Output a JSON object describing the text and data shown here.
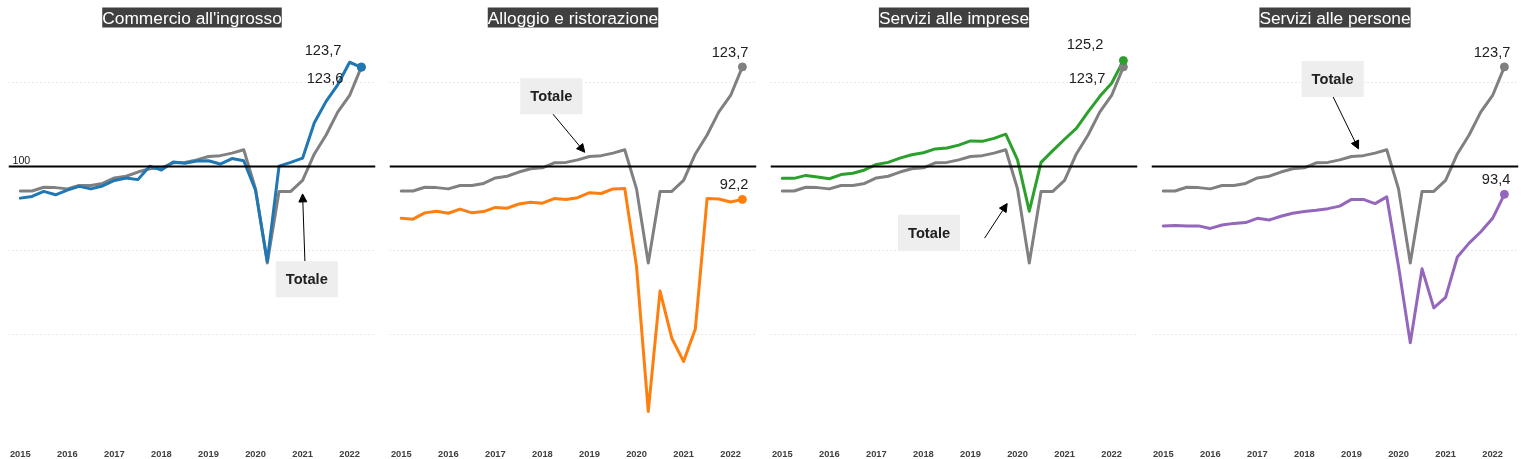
{
  "chart_data": [
    {
      "type": "line",
      "title": "Commercio all'ingrosso",
      "x": [
        2015,
        2015.25,
        2015.5,
        2015.75,
        2016,
        2016.25,
        2016.5,
        2016.75,
        2017,
        2017.25,
        2017.5,
        2017.75,
        2018,
        2018.25,
        2018.5,
        2018.75,
        2019,
        2019.25,
        2019.5,
        2019.75,
        2020,
        2020.25,
        2020.5,
        2020.75,
        2021,
        2021.25,
        2021.5,
        2021.75,
        2022,
        2022.25
      ],
      "xlim": [
        2014.75,
        2022.55
      ],
      "xticks": [
        2015,
        2016,
        2017,
        2018,
        2019,
        2020,
        2021,
        2022
      ],
      "yticks": [
        {
          "value": 60,
          "label": null
        },
        {
          "value": 80,
          "label": null
        },
        {
          "value": 100,
          "label": null
        },
        {
          "value": 120,
          "label": null
        }
      ],
      "tick_labels": "x",
      "grid": "y",
      "ref_lines": [
        {
          "axis": "y",
          "value": 100,
          "color": "#000000",
          "label": "100"
        }
      ],
      "annotations": [
        "Totale"
      ],
      "series": [
        {
          "color": "#808080",
          "values": [
            94.2,
            94.2,
            95.1,
            95.0,
            94.7,
            95.5,
            95.5,
            96.0,
            97.3,
            97.7,
            98.7,
            99.5,
            99.7,
            100.9,
            101.0,
            101.6,
            102.4,
            102.6,
            103.2,
            104.0,
            94.7,
            77.1,
            94.1,
            94.1,
            96.7,
            103.0,
            107.5,
            113.0,
            116.9,
            123.7
          ],
          "value_labels": [
            null,
            null,
            null,
            null,
            null,
            null,
            null,
            null,
            null,
            null,
            null,
            null,
            null,
            null,
            null,
            null,
            null,
            null,
            null,
            null,
            null,
            null,
            null,
            null,
            null,
            null,
            null,
            null,
            null,
            "123,7"
          ]
        },
        {
          "color": "#1f77b4",
          "values": [
            92.5,
            92.9,
            94.1,
            93.3,
            94.4,
            95.3,
            94.7,
            95.4,
            96.7,
            97.3,
            96.9,
            100.1,
            99.2,
            101.1,
            100.8,
            101.3,
            101.4,
            100.6,
            101.9,
            101.4,
            94.4,
            77.5,
            100.1,
            101.0,
            102.0,
            110.4,
            115.5,
            119.5,
            124.8,
            123.6
          ],
          "value_labels": [
            null,
            null,
            null,
            null,
            null,
            null,
            null,
            null,
            null,
            null,
            null,
            null,
            null,
            null,
            null,
            null,
            null,
            null,
            null,
            null,
            null,
            null,
            null,
            null,
            null,
            null,
            null,
            null,
            null,
            "123,6"
          ]
        }
      ]
    },
    {
      "type": "line",
      "title": "Alloggio e ristorazione",
      "x": [
        2015,
        2015.25,
        2015.5,
        2015.75,
        2016,
        2016.25,
        2016.5,
        2016.75,
        2017,
        2017.25,
        2017.5,
        2017.75,
        2018,
        2018.25,
        2018.5,
        2018.75,
        2019,
        2019.25,
        2019.5,
        2019.75,
        2020,
        2020.25,
        2020.5,
        2020.75,
        2021,
        2021.25,
        2021.5,
        2021.75,
        2022,
        2022.25
      ],
      "xlim": [
        2014.75,
        2022.55
      ],
      "xticks": [
        2015,
        2016,
        2017,
        2018,
        2019,
        2020,
        2021,
        2022
      ],
      "yticks": [
        {
          "value": 60,
          "label": null
        },
        {
          "value": 80,
          "label": null
        },
        {
          "value": 100,
          "label": null
        },
        {
          "value": 120,
          "label": null
        }
      ],
      "tick_labels": "x",
      "grid": "y",
      "ref_lines": [
        {
          "axis": "y",
          "value": 100,
          "color": "#000000"
        }
      ],
      "annotations": [
        "Totale"
      ],
      "series": [
        {
          "color": "#808080",
          "values": [
            94.2,
            94.2,
            95.1,
            95.0,
            94.7,
            95.5,
            95.5,
            96.0,
            97.3,
            97.7,
            98.7,
            99.5,
            99.7,
            100.9,
            101.0,
            101.6,
            102.4,
            102.6,
            103.2,
            104.0,
            94.7,
            77.1,
            94.1,
            94.1,
            96.7,
            103.0,
            107.5,
            113.0,
            116.9,
            123.7
          ],
          "value_labels": [
            null,
            null,
            null,
            null,
            null,
            null,
            null,
            null,
            null,
            null,
            null,
            null,
            null,
            null,
            null,
            null,
            null,
            null,
            null,
            null,
            null,
            null,
            null,
            null,
            null,
            null,
            null,
            null,
            null,
            "123,7"
          ]
        },
        {
          "color": "#ff7f0e",
          "values": [
            87.7,
            87.5,
            89.0,
            89.4,
            88.9,
            89.9,
            89.0,
            89.3,
            90.3,
            90.1,
            91.1,
            91.5,
            91.3,
            92.4,
            92.2,
            92.6,
            93.8,
            93.6,
            94.7,
            94.8,
            76.3,
            41.8,
            70.4,
            59.2,
            53.7,
            61.4,
            92.4,
            92.3,
            91.6,
            92.2
          ],
          "value_labels": [
            null,
            null,
            null,
            null,
            null,
            null,
            null,
            null,
            null,
            null,
            null,
            null,
            null,
            null,
            null,
            null,
            null,
            null,
            null,
            null,
            null,
            null,
            null,
            null,
            null,
            null,
            null,
            null,
            null,
            "92,2"
          ]
        }
      ]
    },
    {
      "type": "line",
      "title": "Servizi alle imprese",
      "x": [
        2015,
        2015.25,
        2015.5,
        2015.75,
        2016,
        2016.25,
        2016.5,
        2016.75,
        2017,
        2017.25,
        2017.5,
        2017.75,
        2018,
        2018.25,
        2018.5,
        2018.75,
        2019,
        2019.25,
        2019.5,
        2019.75,
        2020,
        2020.25,
        2020.5,
        2020.75,
        2021,
        2021.25,
        2021.5,
        2021.75,
        2022,
        2022.25
      ],
      "xlim": [
        2014.75,
        2022.55
      ],
      "xticks": [
        2015,
        2016,
        2017,
        2018,
        2019,
        2020,
        2021,
        2022
      ],
      "yticks": [
        {
          "value": 60,
          "label": null
        },
        {
          "value": 80,
          "label": null
        },
        {
          "value": 100,
          "label": null
        },
        {
          "value": 120,
          "label": null
        }
      ],
      "tick_labels": "x",
      "grid": "y",
      "ref_lines": [
        {
          "axis": "y",
          "value": 100,
          "color": "#000000"
        }
      ],
      "annotations": [
        "Totale"
      ],
      "series": [
        {
          "color": "#808080",
          "values": [
            94.2,
            94.2,
            95.1,
            95.0,
            94.7,
            95.5,
            95.5,
            96.0,
            97.3,
            97.7,
            98.7,
            99.5,
            99.7,
            100.9,
            101.0,
            101.6,
            102.4,
            102.6,
            103.2,
            104.0,
            94.7,
            77.1,
            94.1,
            94.1,
            96.7,
            103.0,
            107.5,
            113.0,
            116.9,
            123.7
          ],
          "value_labels": [
            null,
            null,
            null,
            null,
            null,
            null,
            null,
            null,
            null,
            null,
            null,
            null,
            null,
            null,
            null,
            null,
            null,
            null,
            null,
            null,
            null,
            null,
            null,
            null,
            null,
            null,
            null,
            null,
            null,
            "123,7"
          ]
        },
        {
          "color": "#2ca02c",
          "values": [
            97.2,
            97.2,
            97.9,
            97.5,
            97.1,
            98.1,
            98.4,
            99.2,
            100.5,
            101.0,
            102.0,
            102.8,
            103.3,
            104.2,
            104.4,
            105.1,
            106.1,
            106.0,
            106.7,
            107.7,
            101.6,
            89.4,
            101.0,
            103.8,
            106.5,
            109.1,
            113.0,
            116.7,
            119.8,
            125.2
          ],
          "value_labels": [
            null,
            null,
            null,
            null,
            null,
            null,
            null,
            null,
            null,
            null,
            null,
            null,
            null,
            null,
            null,
            null,
            null,
            null,
            null,
            null,
            null,
            null,
            null,
            null,
            null,
            null,
            null,
            null,
            null,
            "125,2"
          ]
        }
      ]
    },
    {
      "type": "line",
      "title": "Servizi alle persone",
      "x": [
        2015,
        2015.25,
        2015.5,
        2015.75,
        2016,
        2016.25,
        2016.5,
        2016.75,
        2017,
        2017.25,
        2017.5,
        2017.75,
        2018,
        2018.25,
        2018.5,
        2018.75,
        2019,
        2019.25,
        2019.5,
        2019.75,
        2020,
        2020.25,
        2020.5,
        2020.75,
        2021,
        2021.25,
        2021.5,
        2021.75,
        2022,
        2022.25
      ],
      "xlim": [
        2014.75,
        2022.55
      ],
      "xticks": [
        2015,
        2016,
        2017,
        2018,
        2019,
        2020,
        2021,
        2022
      ],
      "yticks": [
        {
          "value": 60,
          "label": null
        },
        {
          "value": 80,
          "label": null
        },
        {
          "value": 100,
          "label": null
        },
        {
          "value": 120,
          "label": null
        }
      ],
      "tick_labels": "x",
      "grid": "y",
      "ref_lines": [
        {
          "axis": "y",
          "value": 100,
          "color": "#000000"
        }
      ],
      "annotations": [
        "Totale"
      ],
      "series": [
        {
          "color": "#808080",
          "values": [
            94.2,
            94.2,
            95.1,
            95.0,
            94.7,
            95.5,
            95.5,
            96.0,
            97.3,
            97.7,
            98.7,
            99.5,
            99.7,
            100.9,
            101.0,
            101.6,
            102.4,
            102.6,
            103.2,
            104.0,
            94.7,
            77.1,
            94.1,
            94.1,
            96.7,
            103.0,
            107.5,
            113.0,
            116.9,
            123.7
          ],
          "value_labels": [
            null,
            null,
            null,
            null,
            null,
            null,
            null,
            null,
            null,
            null,
            null,
            null,
            null,
            null,
            null,
            null,
            null,
            null,
            null,
            null,
            null,
            null,
            null,
            null,
            null,
            null,
            null,
            null,
            null,
            "123,7"
          ]
        },
        {
          "color": "#9467bd",
          "values": [
            85.9,
            86.0,
            85.9,
            85.9,
            85.3,
            86.1,
            86.5,
            86.7,
            87.7,
            87.3,
            88.2,
            88.9,
            89.3,
            89.6,
            90.0,
            90.6,
            92.2,
            92.2,
            91.2,
            92.8,
            76.3,
            58.1,
            75.7,
            66.4,
            68.9,
            78.5,
            81.8,
            84.5,
            87.7,
            93.4
          ],
          "value_labels": [
            null,
            null,
            null,
            null,
            null,
            null,
            null,
            null,
            null,
            null,
            null,
            null,
            null,
            null,
            null,
            null,
            null,
            null,
            null,
            null,
            null,
            null,
            null,
            null,
            null,
            null,
            null,
            null,
            null,
            "93,4"
          ]
        }
      ]
    }
  ]
}
